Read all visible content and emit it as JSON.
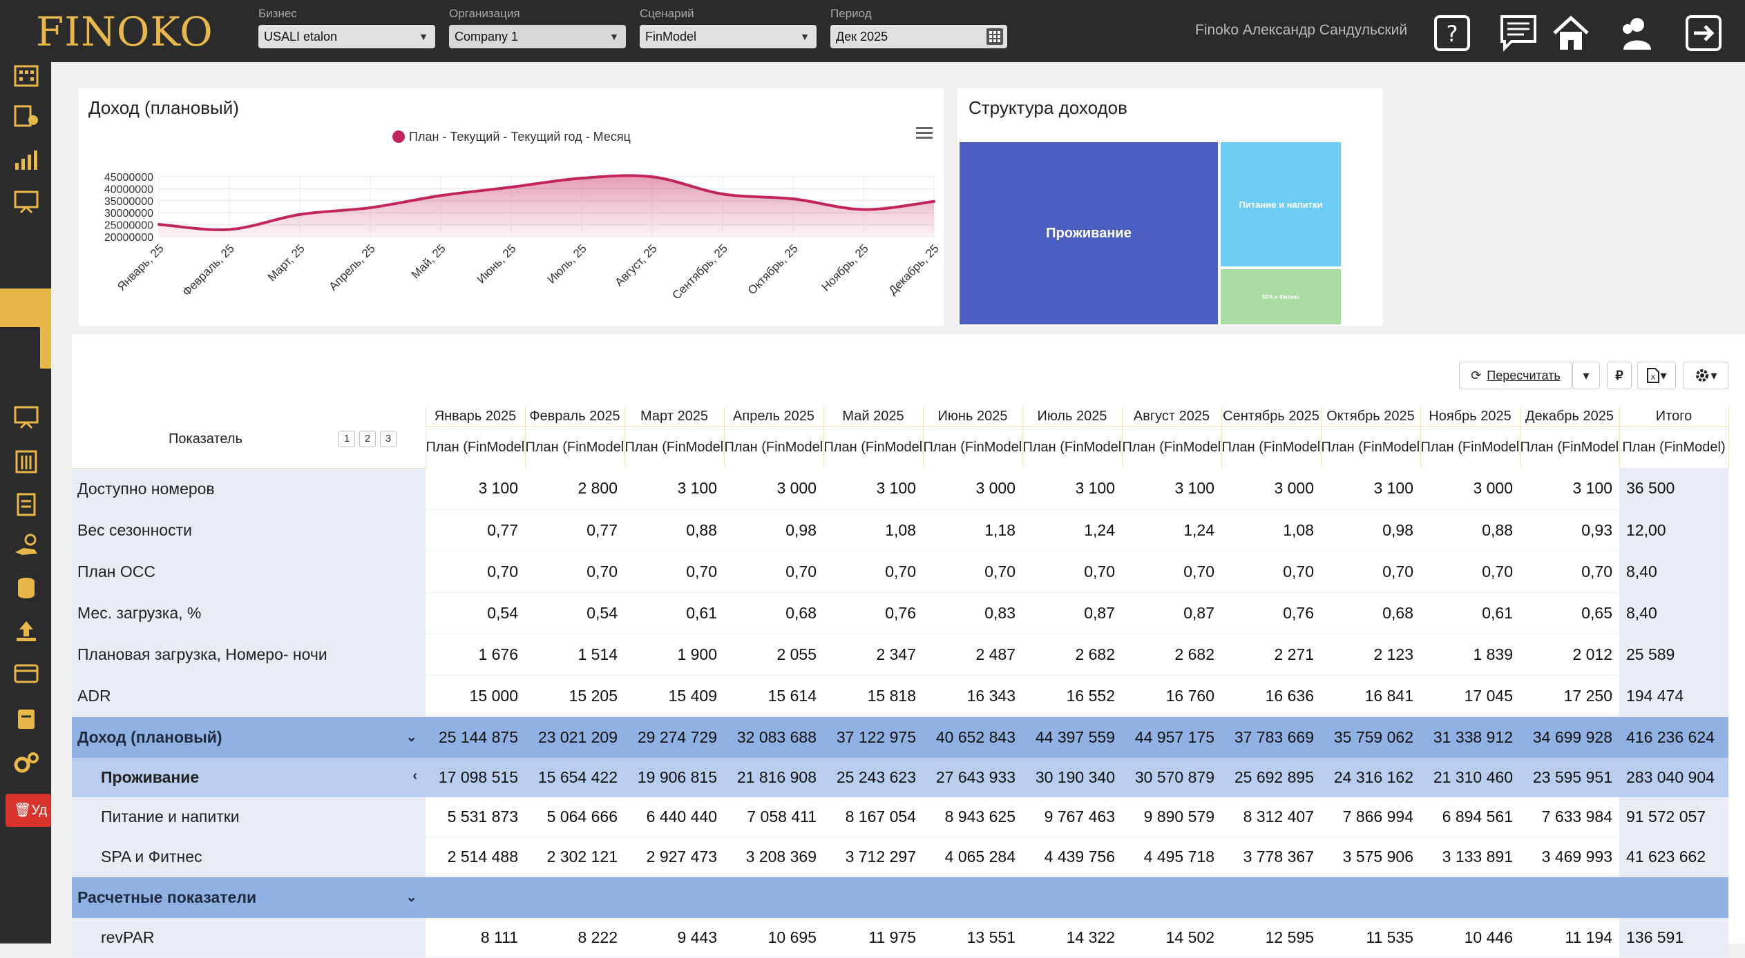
{
  "app": {
    "logo": "FINOKO"
  },
  "filters": [
    {
      "label": "Бизнес",
      "value": "USALI etalon"
    },
    {
      "label": "Организация",
      "value": "Company 1"
    },
    {
      "label": "Сценарий",
      "value": "FinModel"
    },
    {
      "label": "Период",
      "value": "Дек 2025"
    }
  ],
  "user": {
    "name": "Finoko Александр Сандульский"
  },
  "sidebar": {
    "delete_label": "Уд"
  },
  "chart_panel": {
    "title": "Доход (плановый)"
  },
  "structure_panel": {
    "title": "Структура доходов"
  },
  "chart_data": {
    "type": "area",
    "title": "Доход (плановый)",
    "legend": "top-center",
    "categories": [
      "Январь, 25",
      "Февраль, 25",
      "Март, 25",
      "Апрель, 25",
      "Май, 25",
      "Июнь, 25",
      "Июль, 25",
      "Август, 25",
      "Сентябрь, 25",
      "Октябрь, 25",
      "Ноябрь, 25",
      "Декабрь, 25"
    ],
    "yticks": [
      20000000,
      25000000,
      30000000,
      35000000,
      40000000,
      45000000
    ],
    "ylim": [
      20000000,
      45000000
    ],
    "series": [
      {
        "name": "План - Текущий - Текущий год - Месяц",
        "color": "#c2255c",
        "values": [
          25144875,
          23021209,
          29274729,
          32083688,
          37122975,
          40652843,
          44397559,
          44957175,
          37783669,
          35759062,
          31338912,
          34699928
        ]
      }
    ]
  },
  "treemap": [
    {
      "label": "Проживание",
      "value": 283040904,
      "color": "#4a5fc1"
    },
    {
      "label": "Питание и напитки",
      "value": 91572057,
      "color": "#6ecdf5"
    },
    {
      "label": "SPA и Фитнес",
      "value": 41623662,
      "color": "#a8dca0"
    }
  ],
  "toolbar": {
    "recalc": "Пересчитать",
    "currency": "₽"
  },
  "table": {
    "indicator_header": "Показатель",
    "levels": [
      "1",
      "2",
      "3"
    ],
    "months": [
      "Январь 2025",
      "Февраль 2025",
      "Март 2025",
      "Апрель 2025",
      "Май 2025",
      "Июнь 2025",
      "Июль 2025",
      "Август 2025",
      "Сентябрь 2025",
      "Октябрь 2025",
      "Ноябрь 2025",
      "Декабрь 2025"
    ],
    "sub_header": "План (FinModel)",
    "total_header": "Итого",
    "rows": [
      {
        "label": "Доступно номеров",
        "kind": "r",
        "values": [
          "3 100",
          "2 800",
          "3 100",
          "3 000",
          "3 100",
          "3 000",
          "3 100",
          "3 100",
          "3 000",
          "3 100",
          "3 000",
          "3 100"
        ],
        "total": "36 500"
      },
      {
        "label": "Вес сезонности",
        "kind": "r",
        "values": [
          "0,77",
          "0,77",
          "0,88",
          "0,98",
          "1,08",
          "1,18",
          "1,24",
          "1,24",
          "1,08",
          "0,98",
          "0,88",
          "0,93"
        ],
        "total": "12,00"
      },
      {
        "label": "План ОСС",
        "kind": "r",
        "values": [
          "0,70",
          "0,70",
          "0,70",
          "0,70",
          "0,70",
          "0,70",
          "0,70",
          "0,70",
          "0,70",
          "0,70",
          "0,70",
          "0,70"
        ],
        "total": "8,40"
      },
      {
        "label": "Мес. загрузка, %",
        "kind": "r",
        "values": [
          "0,54",
          "0,54",
          "0,61",
          "0,68",
          "0,76",
          "0,83",
          "0,87",
          "0,87",
          "0,76",
          "0,68",
          "0,61",
          "0,65"
        ],
        "total": "8,40"
      },
      {
        "label": "Плановая загрузка, Номеро- ночи",
        "kind": "r",
        "values": [
          "1 676",
          "1 514",
          "1 900",
          "2 055",
          "2 347",
          "2 487",
          "2 682",
          "2 682",
          "2 271",
          "2 123",
          "1 839",
          "2 012"
        ],
        "total": "25 589"
      },
      {
        "label": "ADR",
        "kind": "r",
        "values": [
          "15 000",
          "15 205",
          "15 409",
          "15 614",
          "15 818",
          "16 343",
          "16 552",
          "16 760",
          "16 636",
          "16 841",
          "17 045",
          "17 250"
        ],
        "total": "194 474"
      },
      {
        "label": "Доход (плановый)",
        "kind": "sum",
        "chev": "⌄",
        "values": [
          "25 144 875",
          "23 021 209",
          "29 274 729",
          "32 083 688",
          "37 122 975",
          "40 652 843",
          "44 397 559",
          "44 957 175",
          "37 783 669",
          "35 759 062",
          "31 338 912",
          "34 699 928"
        ],
        "total": "416 236 624"
      },
      {
        "label": "Проживание",
        "kind": "sub1",
        "chev": "‹",
        "values": [
          "17 098 515",
          "15 654 422",
          "19 906 815",
          "21 816 908",
          "25 243 623",
          "27 643 933",
          "30 190 340",
          "30 570 879",
          "25 692 895",
          "24 316 162",
          "21 310 460",
          "23 595 951"
        ],
        "total": "283 040 904"
      },
      {
        "label": "Питание и напитки",
        "kind": "sub2",
        "values": [
          "5 531 873",
          "5 064 666",
          "6 440 440",
          "7 058 411",
          "8 167 054",
          "8 943 625",
          "9 767 463",
          "9 890 579",
          "8 312 407",
          "7 866 994",
          "6 894 561",
          "7 633 984"
        ],
        "total": "91 572 057"
      },
      {
        "label": "SPA и Фитнес",
        "kind": "sub2",
        "values": [
          "2 514 488",
          "2 302 121",
          "2 927 473",
          "3 208 369",
          "3 712 297",
          "4 065 284",
          "4 439 756",
          "4 495 718",
          "3 778 367",
          "3 575 906",
          "3 133 891",
          "3 469 993"
        ],
        "total": "41 623 662"
      },
      {
        "label": "Расчетные показатели",
        "kind": "sec",
        "chev": "⌄",
        "values": [
          "",
          "",
          "",
          "",
          "",
          "",
          "",
          "",
          "",
          "",
          "",
          ""
        ],
        "total": ""
      },
      {
        "label": "revPAR",
        "kind": "sub2",
        "values": [
          "8 111",
          "8 222",
          "9 443",
          "10 695",
          "11 975",
          "13 551",
          "14 322",
          "14 502",
          "12 595",
          "11 535",
          "10 446",
          "11 194"
        ],
        "total": "136 591"
      }
    ]
  }
}
